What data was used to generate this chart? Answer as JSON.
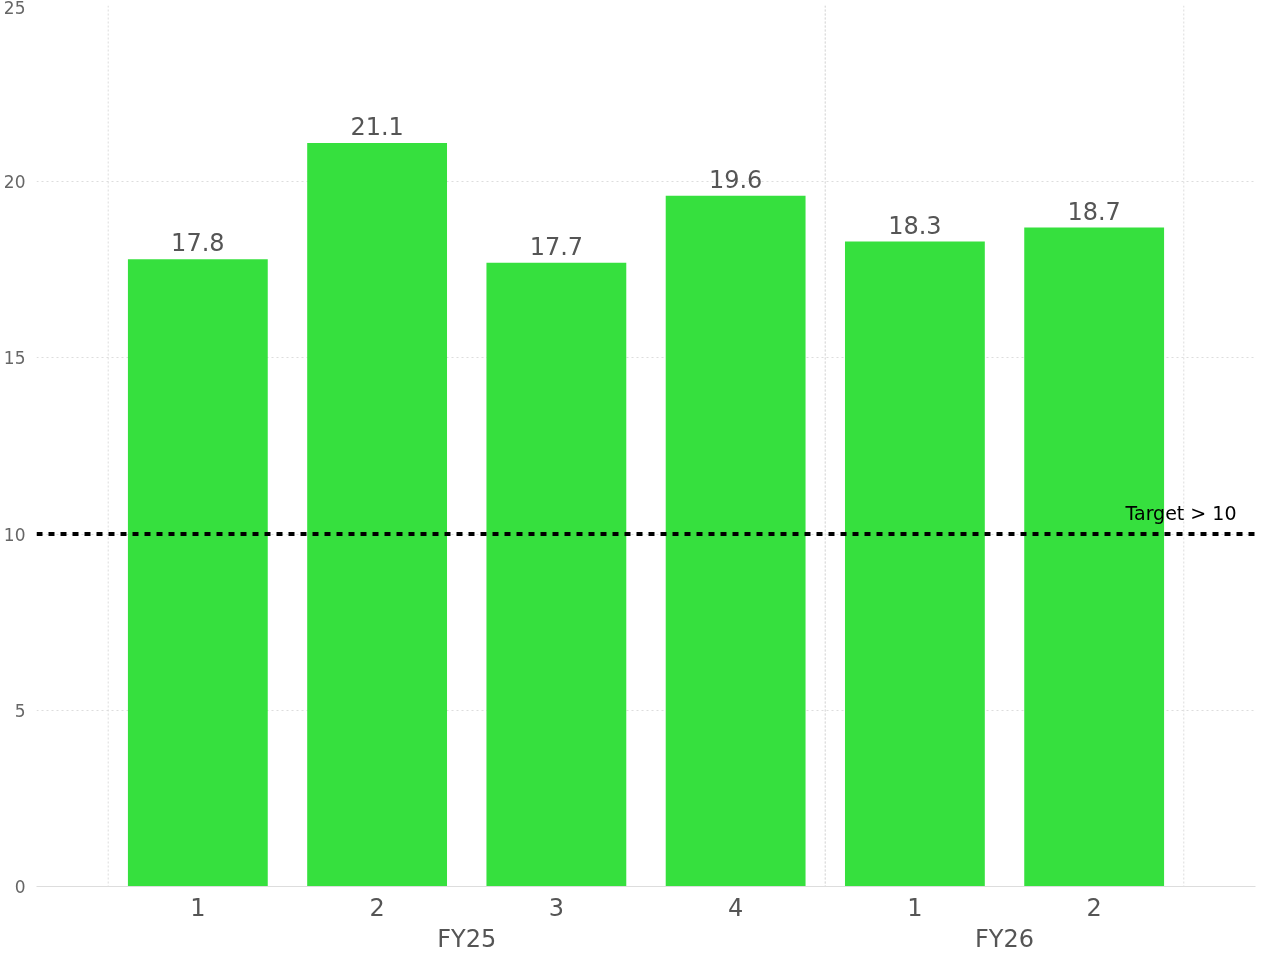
{
  "chart_data": {
    "type": "bar",
    "categories": [
      "1",
      "2",
      "3",
      "4",
      "1",
      "2"
    ],
    "values": [
      17.8,
      21.1,
      17.7,
      19.6,
      18.3,
      18.7
    ],
    "color": "#36e03e",
    "ylim": [
      0,
      25
    ],
    "yticks": [
      0,
      5,
      10,
      15,
      20,
      25
    ],
    "grid": "y",
    "data_labels": true,
    "annotations": [
      "FY25",
      "FY26"
    ],
    "ref_lines": [
      {
        "axis": "y",
        "value": 10,
        "label": "Target > 10",
        "color": "#000000",
        "line_style": "dashed"
      }
    ]
  }
}
